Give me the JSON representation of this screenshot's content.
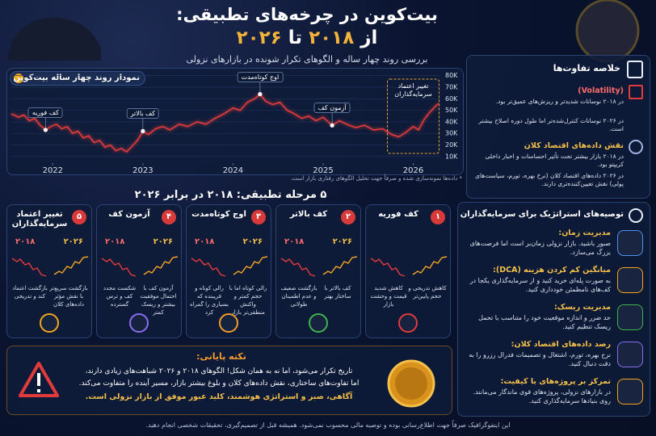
{
  "header": {
    "title": "بیت‌کوین در چرخه‌های تطبیقی:",
    "title_from": "از",
    "year_start": "۲۰۱۸",
    "title_to": "تا",
    "year_end": "۲۰۲۶",
    "subtitle": "بررسی روند چهار ساله و الگوهای تکرار شونده در بازارهای نزولی"
  },
  "chart_data": {
    "type": "line",
    "title": "نمودار روند چهار ساله بیت‌کوین",
    "note": "* داده‌ها نمونه‌سازی شده و صرفاً جهت تحلیل الگوهای رفتاری بازار است.",
    "color": "#e23b3b",
    "grid": true,
    "x": [
      2021.54,
      2021.62,
      2021.68,
      2021.74,
      2021.8,
      2021.86,
      2021.92,
      2021.98,
      2022.04,
      2022.1,
      2022.16,
      2022.22,
      2022.28,
      2022.34,
      2022.4,
      2022.46,
      2022.52,
      2022.58,
      2022.64,
      2022.7,
      2022.76,
      2022.82,
      2022.88,
      2022.94,
      2023.0,
      2023.06,
      2023.14,
      2023.22,
      2023.3,
      2023.4,
      2023.5,
      2023.6,
      2023.7,
      2023.8,
      2023.9,
      2024.0,
      2024.08,
      2024.16,
      2024.24,
      2024.3,
      2024.36,
      2024.44,
      2024.52,
      2024.6,
      2024.68,
      2024.76,
      2024.84,
      2024.92,
      2025.0,
      2025.1,
      2025.18,
      2025.26,
      2025.36,
      2025.46,
      2025.56,
      2025.66,
      2025.76,
      2025.84,
      2025.92,
      2026.0,
      2026.06,
      2026.12,
      2026.18,
      2026.24,
      2026.28
    ],
    "values": [
      47000,
      44000,
      46000,
      41000,
      43000,
      37000,
      33000,
      36000,
      38000,
      34000,
      36000,
      30000,
      32000,
      26000,
      28000,
      22000,
      24000,
      18000,
      20000,
      15000,
      17000,
      14000,
      19000,
      24000,
      32000,
      29000,
      34000,
      36000,
      33000,
      38000,
      36000,
      40000,
      38000,
      43000,
      47000,
      52000,
      50000,
      57000,
      60000,
      64000,
      58000,
      55000,
      57000,
      50000,
      47000,
      43000,
      45000,
      41000,
      44000,
      37000,
      41000,
      38000,
      35000,
      37000,
      33000,
      34000,
      29000,
      27000,
      31000,
      36000,
      33000,
      42000,
      48000,
      53000,
      56000
    ],
    "xlim": [
      2021.54,
      2026.3
    ],
    "ylim": [
      5000,
      84000
    ],
    "xticks": [
      2022,
      2023,
      2024,
      2025,
      2026
    ],
    "yticks": [
      {
        "value": 10000,
        "label": "10K"
      },
      {
        "value": 20000,
        "label": "20K"
      },
      {
        "value": 30000,
        "label": "30K"
      },
      {
        "value": 40000,
        "label": "40K"
      },
      {
        "value": 50000,
        "label": "50K"
      },
      {
        "value": 60000,
        "label": "60K"
      },
      {
        "value": 70000,
        "label": "70K"
      },
      {
        "value": 80000,
        "label": "80K"
      }
    ],
    "annotations": [
      {
        "text": "کف فوریه",
        "x": 2021.92,
        "y": 33000
      },
      {
        "text": "کف بالاتر",
        "x": 2023.0,
        "y": 32000
      },
      {
        "text": "اوج کوتاه‌مدت",
        "x": 2024.3,
        "y": 64000
      },
      {
        "text": "آزمون کف",
        "x": 2025.1,
        "y": 37000
      },
      {
        "text": "تغییر اعتماد سرمایه‌گذاران",
        "x": 2026.0
      }
    ]
  },
  "differences": {
    "title": "خلاصه تفاوت‌ها",
    "sections": [
      {
        "title": "(Volatility)",
        "points": [
          "در ۲۰۱۸ نوسانات شدیدتر و ریزش‌های عمیق‌تر بود.",
          "در ۲۰۲۶ نوسانات کنترل‌شده‌تر اما طول دوره اصلاح بیشتر است."
        ]
      },
      {
        "title": "نقش داده‌های اقتصاد کلان",
        "points": [
          "در ۲۰۱۸ بازار بیشتر تحت تأثیر احساسات و اخبار داخلی کریپتو بود.",
          "در ۲۰۲۶ داده‌های اقتصاد کلان (نرخ بهره، تورم، سیاست‌های پولی) نقش تعیین‌کننده‌تری دارند."
        ]
      }
    ]
  },
  "stages": {
    "title": "۵ مرحله تطبیقی: ۲۰۱۸ در برابر ۲۰۲۶",
    "items": [
      {
        "number": "۱",
        "title": "کف فوریه",
        "text_2018": "کاهش شدید قیمت و وحشت بازار",
        "text_2026": "کاهش تدریجی و حجم پایین‌تر"
      },
      {
        "number": "۲",
        "title": "کف بالاتر",
        "years": [
          "۲۰۱۸",
          "۲۰۲۶"
        ],
        "text_2018": "بازگشت ضعیف و عدم اطمینان طولانی",
        "text_2026": "کف بالاتر با ساختار بهتر"
      },
      {
        "number": "۳",
        "title": "اوج کوتاه‌مدت",
        "years": [
          "۲۰۱۸",
          "۲۰۲۶"
        ],
        "text_2018": "رالی کوتاه و فریبنده که بسیاری را گمراه کرد",
        "text_2026": "رالی کوتاه اما با حجم کمتر و واکنش منطقی‌تر بازار"
      },
      {
        "number": "۴",
        "title": "آزمون کف",
        "years": [
          "۲۰۱۸",
          "۲۰۲۶"
        ],
        "text_2018": "شکست مجدد کف و ترس گسترده",
        "text_2026": "آزمون کف با احتمال موفقیت بیشتر و ریسک کمتر"
      },
      {
        "number": "۵",
        "title": "تغییر اعتماد سرمایه‌گذاران",
        "years": [
          "۲۰۱۸",
          "۲۰۲۶"
        ],
        "text_2018": "بازگشت اعتماد کند و تدریجی",
        "text_2026": "بازگشت سریع‌تر با نقش مؤثر داده‌های کلان"
      }
    ]
  },
  "tips": {
    "title": "توصیه‌های استراتژیک برای سرمایه‌گذاران",
    "items": [
      {
        "title": "مدیریت زمان:",
        "text": "صبور باشید. بازار نزولی زمان‌بر است اما فرصت‌های بزرگ می‌سازد."
      },
      {
        "title": "میانگین کم کردن هزینه (DCA):",
        "text": "به صورت پله‌ای خرید کنید و از سرمایه‌گذاری یکجا در کف‌های نامطمئن خودداری کنید."
      },
      {
        "title": "مدیریت ریسک:",
        "text": "حد ضرر و اندازه موقعیت خود را متناسب با تحمل ریسک تنظیم کنید."
      },
      {
        "title": "رصد داده‌های اقتصاد کلان:",
        "text": "نرخ بهره، تورم، اشتغال و تصمیمات فدرال رزرو را به دقت دنبال کنید."
      },
      {
        "title": "تمرکز بر پروژه‌های با کیفیت:",
        "text": "در بازارهای نزولی، پروژه‌های قوی ماندگار می‌مانند. روی بنیادها سرمایه‌گذاری کنید."
      }
    ]
  },
  "final_note": {
    "title": "نکته پایانی:",
    "lines": [
      "تاریخ تکرار می‌شود، اما نه به همان شکل! الگوهای ۲۰۱۸ و ۲۰۲۶ شباهت‌های زیادی دارند،",
      "اما تفاوت‌های ساختاری، نقش داده‌های کلان و بلوغ بیشتر بازار، مسیر آینده را متفاوت می‌کند."
    ],
    "emphasis": "آگاهی، صبر و استراتژی هوشمند، کلید عبور موفق از بازار نزولی است."
  },
  "footer": "این اینفوگرافیک صرفاً جهت اطلاع‌رسانی بوده و توصیه مالی محسوب نمی‌شود. همیشه قبل از تصمیم‌گیری، تحقیقات شخصی انجام دهید."
}
